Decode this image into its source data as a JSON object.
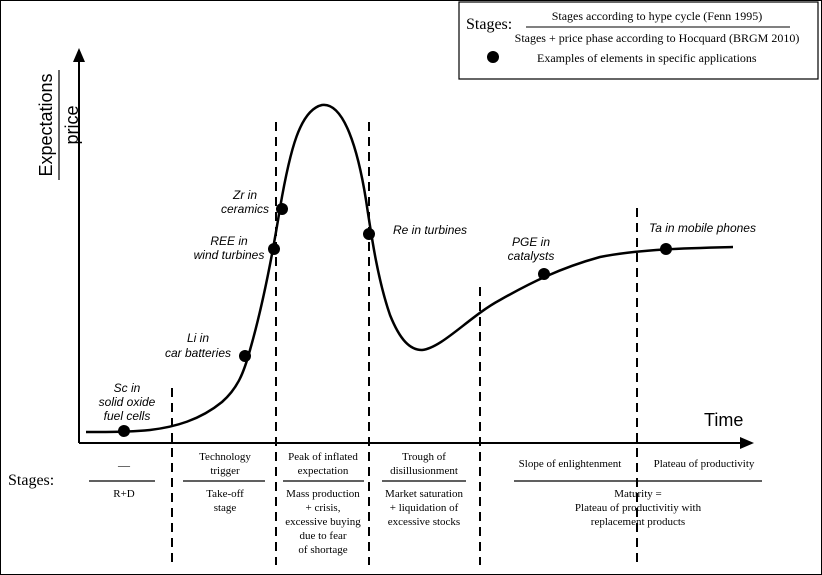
{
  "legend": {
    "stages_label": "Stages:",
    "stage_line_top": "Stages according to hype cycle (Fenn 1995)",
    "stage_line_bottom": "Stages + price phase according to Hocquard (BRGM 2010)",
    "examples_label": "Examples of elements in specific applications"
  },
  "axes": {
    "y_label_top": "Expectations",
    "y_label_bottom": "price",
    "x_label": "Time"
  },
  "examples": [
    {
      "lines": [
        "Sc in",
        "solid oxide",
        "fuel cells"
      ]
    },
    {
      "lines": [
        "Li in",
        "car batteries"
      ]
    },
    {
      "lines": [
        "REE in",
        "wind turbines"
      ]
    },
    {
      "lines": [
        "Zr in",
        "ceramics"
      ]
    },
    {
      "lines": [
        "Re in turbines"
      ]
    },
    {
      "lines": [
        "PGE in",
        "catalysts"
      ]
    },
    {
      "lines": [
        "Ta in mobile phones"
      ]
    }
  ],
  "stages_row": {
    "label": "Stages:",
    "columns": [
      {
        "top": [
          "—"
        ],
        "bottom": [
          "R+D"
        ]
      },
      {
        "top": [
          "Technology",
          "trigger"
        ],
        "bottom": [
          "Take-off",
          "stage"
        ]
      },
      {
        "top": [
          "Peak of inflated",
          "expectation"
        ],
        "bottom": [
          "Mass production",
          "+ crisis,",
          "excessive buying",
          "due to fear",
          "of shortage"
        ]
      },
      {
        "top": [
          "Trough of",
          "disillusionment"
        ],
        "bottom": [
          "Market saturation",
          "+ liquidation of",
          "excessive stocks"
        ]
      },
      {
        "top": [
          "Slope of enlightenment"
        ],
        "bottom": [
          "Maturity =",
          "Plateau of productivitiy with",
          "replacement products"
        ]
      },
      {
        "top": [
          "Plateau of productivity"
        ],
        "bottom": []
      }
    ]
  }
}
